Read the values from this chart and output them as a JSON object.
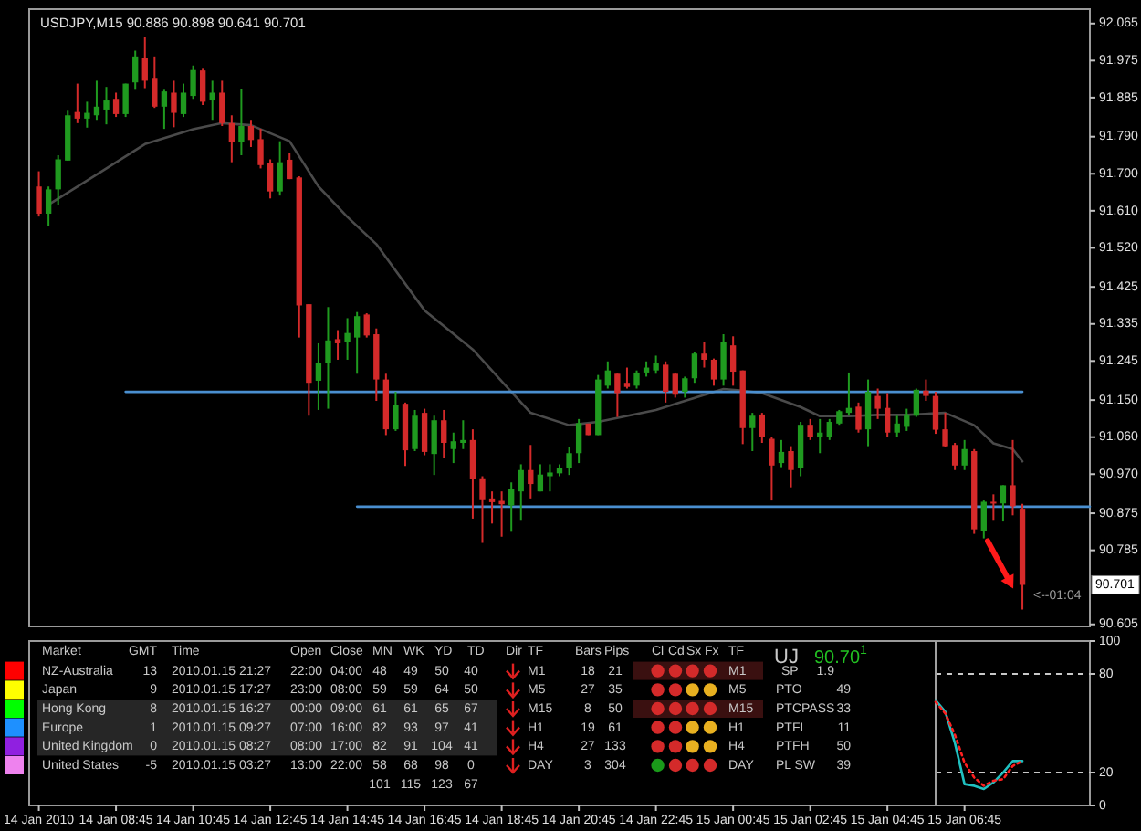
{
  "chart_data": [
    {
      "type": "candlestick",
      "title": "USDJPY,M15 90.886 90.898 90.641 90.701",
      "tick_labels": "y",
      "xlim": [
        "2010-01-14T06:30",
        "2010-01-15T10:00"
      ],
      "ylim": [
        90.6,
        92.1
      ],
      "yticks": [
        92.065,
        91.975,
        91.885,
        {
          "value": 91.79,
          "label": "91.790"
        },
        {
          "value": 91.7,
          "label": "91.700"
        },
        {
          "value": 91.61,
          "label": "91.610"
        },
        {
          "value": 91.52,
          "label": "91.520"
        },
        91.425,
        91.335,
        91.245,
        {
          "value": 91.15,
          "label": "91.150"
        },
        {
          "value": 91.06,
          "label": "91.060"
        },
        {
          "value": 90.97,
          "label": "90.970"
        },
        90.875,
        90.785,
        90.605
      ],
      "x": [
        "2010-01-14T06:45",
        "2010-01-14T07:00",
        "2010-01-14T07:15",
        "2010-01-14T07:30",
        "2010-01-14T07:45",
        "2010-01-14T08:00",
        "2010-01-14T08:15",
        "2010-01-14T08:30",
        "2010-01-14T08:45",
        "2010-01-14T09:00",
        "2010-01-14T09:15",
        "2010-01-14T09:30",
        "2010-01-14T09:45",
        "2010-01-14T10:00",
        "2010-01-14T10:15",
        "2010-01-14T10:30",
        "2010-01-14T10:45",
        "2010-01-14T11:00",
        "2010-01-14T11:15",
        "2010-01-14T11:30",
        "2010-01-14T11:45",
        "2010-01-14T12:00",
        "2010-01-14T12:15",
        "2010-01-14T12:30",
        "2010-01-14T12:45",
        "2010-01-14T13:00",
        "2010-01-14T13:15",
        "2010-01-14T13:30",
        "2010-01-14T13:45",
        "2010-01-14T14:00",
        "2010-01-14T14:15",
        "2010-01-14T14:30",
        "2010-01-14T14:45",
        "2010-01-14T15:00",
        "2010-01-14T15:15",
        "2010-01-14T15:30",
        "2010-01-14T15:45",
        "2010-01-14T16:00",
        "2010-01-14T16:15",
        "2010-01-14T16:30",
        "2010-01-14T16:45",
        "2010-01-14T17:00",
        "2010-01-14T17:15",
        "2010-01-14T17:30",
        "2010-01-14T17:45",
        "2010-01-14T18:00",
        "2010-01-14T18:15",
        "2010-01-14T18:30",
        "2010-01-14T18:45",
        "2010-01-14T19:00",
        "2010-01-14T19:15",
        "2010-01-14T19:30",
        "2010-01-14T19:45",
        "2010-01-14T20:00",
        "2010-01-14T20:15",
        "2010-01-14T20:30",
        "2010-01-14T20:45",
        "2010-01-14T21:00",
        "2010-01-14T21:15",
        "2010-01-14T21:30",
        "2010-01-14T21:45",
        "2010-01-14T22:00",
        "2010-01-14T22:15",
        "2010-01-14T22:30",
        "2010-01-14T22:45",
        "2010-01-14T23:00",
        "2010-01-14T23:15",
        "2010-01-14T23:30",
        "2010-01-14T23:45",
        "2010-01-15T00:00",
        "2010-01-15T00:15",
        "2010-01-15T00:30",
        "2010-01-15T00:45",
        "2010-01-15T01:00",
        "2010-01-15T01:15",
        "2010-01-15T01:30",
        "2010-01-15T01:45",
        "2010-01-15T02:00",
        "2010-01-15T02:15",
        "2010-01-15T02:30",
        "2010-01-15T02:45",
        "2010-01-15T03:00",
        "2010-01-15T03:15",
        "2010-01-15T03:30",
        "2010-01-15T03:45",
        "2010-01-15T04:00",
        "2010-01-15T04:15",
        "2010-01-15T04:30",
        "2010-01-15T04:45",
        "2010-01-15T05:00",
        "2010-01-15T05:15",
        "2010-01-15T05:30",
        "2010-01-15T05:45",
        "2010-01-15T06:00",
        "2010-01-15T06:15",
        "2010-01-15T06:30",
        "2010-01-15T06:45",
        "2010-01-15T07:00",
        "2010-01-15T07:15",
        "2010-01-15T07:30",
        "2010-01-15T07:45",
        "2010-01-15T08:00",
        "2010-01-15T08:15"
      ],
      "ohlc": [
        [
          91.669,
          91.706,
          91.596,
          91.603
        ],
        [
          91.603,
          91.669,
          91.574,
          91.662
        ],
        [
          91.662,
          91.745,
          91.625,
          91.735
        ],
        [
          91.732,
          91.853,
          91.732,
          91.842
        ],
        [
          91.85,
          91.919,
          91.823,
          91.834
        ],
        [
          91.834,
          91.875,
          91.812,
          91.848
        ],
        [
          91.842,
          91.926,
          91.831,
          91.863
        ],
        [
          91.856,
          91.911,
          91.82,
          91.878
        ],
        [
          91.882,
          91.897,
          91.838,
          91.845
        ],
        [
          91.845,
          91.919,
          91.838,
          91.919
        ],
        [
          91.922,
          91.999,
          91.904,
          91.985
        ],
        [
          91.982,
          92.033,
          91.908,
          91.926
        ],
        [
          91.933,
          91.985,
          91.86,
          91.863
        ],
        [
          91.863,
          91.904,
          91.809,
          91.9
        ],
        [
          91.897,
          91.926,
          91.813,
          91.848
        ],
        [
          91.845,
          91.919,
          91.838,
          91.897
        ],
        [
          91.889,
          91.963,
          91.882,
          91.952
        ],
        [
          91.951,
          91.955,
          91.867,
          91.875
        ],
        [
          91.878,
          91.926,
          91.831,
          91.897
        ],
        [
          91.897,
          91.926,
          91.816,
          91.823
        ],
        [
          91.823,
          91.842,
          91.728,
          91.776
        ],
        [
          91.776,
          91.907,
          91.745,
          91.816
        ],
        [
          91.816,
          91.831,
          91.765,
          91.782
        ],
        [
          91.784,
          91.809,
          91.713,
          91.721
        ],
        [
          91.725,
          91.735,
          91.64,
          91.657
        ],
        [
          91.657,
          91.779,
          91.647,
          91.728
        ],
        [
          91.734,
          91.75,
          91.687,
          91.687
        ],
        [
          91.691,
          91.694,
          91.302,
          91.38
        ],
        [
          91.383,
          91.383,
          91.112,
          91.192
        ],
        [
          91.197,
          91.288,
          91.126,
          91.241
        ],
        [
          91.241,
          91.376,
          91.129,
          91.295
        ],
        [
          91.298,
          91.32,
          91.248,
          91.288
        ],
        [
          91.292,
          91.349,
          91.248,
          91.313
        ],
        [
          91.302,
          91.364,
          91.214,
          91.354
        ],
        [
          91.358,
          91.361,
          91.302,
          91.307
        ],
        [
          91.31,
          91.324,
          91.148,
          91.2
        ],
        [
          91.2,
          91.214,
          91.065,
          91.079
        ],
        [
          91.079,
          91.17,
          91.075,
          91.138
        ],
        [
          91.141,
          91.144,
          90.99,
          91.028
        ],
        [
          91.031,
          91.126,
          91.026,
          91.112
        ],
        [
          91.119,
          91.129,
          91.016,
          91.024
        ],
        [
          91.019,
          91.112,
          90.968,
          91.101
        ],
        [
          91.101,
          91.126,
          91.009,
          91.046
        ],
        [
          91.031,
          91.071,
          90.997,
          91.05
        ],
        [
          91.046,
          91.101,
          91.031,
          91.053
        ],
        [
          91.053,
          91.079,
          90.862,
          90.958
        ],
        [
          90.96,
          90.965,
          90.803,
          90.909
        ],
        [
          90.911,
          90.928,
          90.85,
          90.902
        ],
        [
          90.905,
          90.928,
          90.818,
          90.897
        ],
        [
          90.894,
          90.95,
          90.83,
          90.933
        ],
        [
          90.928,
          90.994,
          90.859,
          90.98
        ],
        [
          90.98,
          91.041,
          90.911,
          90.946
        ],
        [
          90.928,
          90.994,
          90.928,
          90.969
        ],
        [
          90.965,
          90.994,
          90.928,
          90.974
        ],
        [
          90.972,
          90.994,
          90.965,
          90.985
        ],
        [
          90.984,
          91.035,
          90.968,
          91.021
        ],
        [
          91.021,
          91.104,
          90.997,
          91.094
        ],
        [
          91.093,
          91.093,
          91.065,
          91.065
        ],
        [
          91.065,
          91.211,
          91.065,
          91.2
        ],
        [
          91.185,
          91.244,
          91.178,
          91.222
        ],
        [
          91.214,
          91.214,
          91.109,
          91.167
        ],
        [
          91.192,
          91.229,
          91.178,
          91.182
        ],
        [
          91.185,
          91.222,
          91.178,
          91.217
        ],
        [
          91.217,
          91.244,
          91.207,
          91.229
        ],
        [
          91.222,
          91.258,
          91.214,
          91.239
        ],
        [
          91.236,
          91.244,
          91.144,
          91.17
        ],
        [
          91.214,
          91.217,
          91.156,
          91.163
        ],
        [
          91.17,
          91.207,
          91.156,
          91.203
        ],
        [
          91.203,
          91.266,
          91.192,
          91.263
        ],
        [
          91.263,
          91.292,
          91.229,
          91.248
        ],
        [
          91.248,
          91.251,
          91.185,
          91.2
        ],
        [
          91.2,
          91.31,
          91.185,
          91.292
        ],
        [
          91.283,
          91.305,
          91.185,
          91.219
        ],
        [
          91.222,
          91.222,
          91.043,
          91.082
        ],
        [
          91.082,
          91.119,
          91.026,
          91.112
        ],
        [
          91.115,
          91.119,
          91.046,
          91.06
        ],
        [
          91.056,
          91.06,
          90.906,
          90.991
        ],
        [
          90.997,
          91.053,
          90.987,
          91.024
        ],
        [
          91.026,
          91.038,
          90.938,
          90.98
        ],
        [
          90.984,
          91.097,
          90.965,
          91.09
        ],
        [
          91.09,
          91.104,
          91.053,
          91.06
        ],
        [
          91.06,
          91.104,
          91.021,
          91.071
        ],
        [
          91.06,
          91.104,
          91.053,
          91.097
        ],
        [
          91.093,
          91.126,
          91.09,
          91.123
        ],
        [
          91.119,
          91.217,
          91.112,
          91.131
        ],
        [
          91.134,
          91.144,
          91.071,
          91.078
        ],
        [
          91.079,
          91.2,
          91.038,
          91.17
        ],
        [
          91.16,
          91.178,
          91.104,
          91.129
        ],
        [
          91.131,
          91.167,
          91.06,
          91.071
        ],
        [
          91.071,
          91.112,
          91.06,
          91.093
        ],
        [
          91.085,
          91.129,
          91.075,
          91.115
        ],
        [
          91.112,
          91.178,
          91.109,
          91.175
        ],
        [
          91.173,
          91.2,
          91.148,
          91.16
        ],
        [
          91.16,
          91.17,
          91.068,
          91.078
        ],
        [
          91.079,
          91.119,
          91.035,
          91.038
        ],
        [
          91.041,
          91.046,
          90.98,
          90.991
        ],
        [
          90.991,
          91.053,
          90.98,
          91.031
        ],
        [
          91.026,
          91.031,
          90.825,
          90.836
        ],
        [
          90.833,
          90.906,
          90.814,
          90.903
        ],
        [
          90.903,
          90.921,
          90.859,
          90.902
        ],
        [
          90.899,
          90.943,
          90.855,
          90.943
        ],
        [
          90.943,
          91.053,
          90.87,
          90.892
        ],
        [
          90.886,
          90.898,
          90.641,
          90.701
        ]
      ],
      "series": [
        {
          "type": "line",
          "color": "#4a4a4a",
          "x": [
            "2010-01-14T07:00",
            "2010-01-14T08:15",
            "2010-01-14T09:30",
            "2010-01-14T10:45",
            "2010-01-14T11:30",
            "2010-01-14T12:15",
            "2010-01-14T13:15",
            "2010-01-14T14:00",
            "2010-01-14T14:45",
            "2010-01-14T15:30",
            "2010-01-14T16:45",
            "2010-01-14T18:00",
            "2010-01-14T19:00",
            "2010-01-14T19:30",
            "2010-01-14T20:30",
            "2010-01-14T21:15",
            "2010-01-14T22:45",
            "2010-01-14T23:30",
            "2010-01-15T00:30",
            "2010-01-15T01:00",
            "2010-01-15T01:30",
            "2010-01-15T02:30",
            "2010-01-15T03:00",
            "2010-01-15T03:45",
            "2010-01-15T04:30",
            "2010-01-15T05:15",
            "2010-01-15T06:15",
            "2010-01-15T07:00",
            "2010-01-15T07:30",
            "2010-01-15T08:00",
            "2010-01-15T08:15"
          ],
          "values": [
            91.625,
            91.698,
            91.772,
            91.808,
            91.823,
            91.818,
            91.779,
            91.669,
            91.595,
            91.529,
            91.368,
            91.273,
            91.17,
            91.119,
            91.089,
            91.097,
            91.126,
            91.148,
            91.177,
            91.173,
            91.167,
            91.133,
            91.111,
            91.111,
            91.114,
            91.114,
            91.119,
            91.089,
            91.045,
            91.031,
            91.001
          ]
        },
        {
          "type": "line",
          "color": "#4a8fd0",
          "x": [
            "2010-01-14T09:00",
            "2010-01-15T08:15"
          ],
          "values": [
            91.17,
            91.17
          ]
        },
        {
          "type": "line",
          "color": "#4a8fd0",
          "x": [
            "2010-01-14T15:00",
            "2010-01-15T10:00"
          ],
          "values": [
            90.891,
            90.891
          ]
        }
      ],
      "annotations": [
        {
          "text": "<--01:04",
          "x": "2010-01-15T08:15",
          "y": 90.676
        },
        {
          "text": "90.701",
          "y": 90.701
        }
      ]
    },
    {
      "type": "other",
      "colors": [
        "#ff0000",
        "#ffff00",
        "#00ff00",
        "#1e90ff",
        "#9020e0",
        "#ee82ee",
        "#d42a2a",
        "#d42a2a",
        "#d42a2a",
        "#d42a2a",
        "#d42a2a",
        "#d42a2a",
        "#e8b020",
        "#e8b020",
        "#d42a2a",
        "#d42a2a",
        "#d42a2a",
        "#d42a2a",
        "#d42a2a",
        "#d42a2a",
        "#e8b020",
        "#e8b020",
        "#d42a2a",
        "#d42a2a",
        "#e8b020",
        "#e8b020",
        "#1a9a1a",
        "#d42a2a",
        "#d42a2a",
        "#d42a2a"
      ],
      "annotations": [
        "Market",
        "GMT",
        "Time",
        "Open",
        "Close",
        "MN",
        "WK",
        "YD",
        "TD",
        "Dir",
        "TF",
        "Bars",
        "Pips",
        "Cl",
        "Cd",
        "Sx",
        "Fx",
        "TF",
        "NZ-Australia",
        "13",
        "2010.01.15 21:27",
        "22:00",
        "04:00",
        "48",
        "49",
        "50",
        "40",
        "M1",
        "18",
        "21",
        "M1",
        "Japan",
        "9",
        "2010.01.15 17:27",
        "23:00",
        "08:00",
        "59",
        "59",
        "64",
        "50",
        "M5",
        "27",
        "35",
        "M5",
        "Hong Kong",
        "8",
        "2010.01.15 16:27",
        "00:00",
        "09:00",
        "61",
        "61",
        "65",
        "67",
        "M15",
        "8",
        "50",
        "M15",
        "Europe",
        "1",
        "2010.01.15 09:27",
        "07:00",
        "16:00",
        "82",
        "93",
        "97",
        "41",
        "H1",
        "19",
        "61",
        "H1",
        "United Kingdom",
        "0",
        "2010.01.15 08:27",
        "08:00",
        "17:00",
        "82",
        "91",
        "104",
        "41",
        "H4",
        "27",
        "133",
        "H4",
        "United States",
        "-5",
        "2010.01.15 03:27",
        "13:00",
        "22:00",
        "58",
        "68",
        "98",
        "0",
        "DAY",
        "3",
        "304",
        "DAY",
        "101",
        "115",
        "123",
        "67",
        "UJ",
        "90.70$^{1}$",
        "SP",
        "1.9",
        "PTO",
        "49",
        "PTCPASS",
        "33",
        "PTFL",
        "11",
        "PTFH",
        "50",
        "PL SW",
        "39"
      ]
    },
    {
      "type": "line",
      "xlim": [
        "2010-01-14T06:30",
        "2010-01-15T10:00"
      ],
      "ylim": [
        0,
        100
      ],
      "yticks": [
        0,
        20,
        80,
        100
      ],
      "xticks": [
        {
          "value": "2010-01-14T06:45",
          "label": "14 Jan 2010"
        },
        {
          "value": "2010-01-14T08:45",
          "label": "14 Jan 08:45"
        },
        {
          "value": "2010-01-14T10:45",
          "label": "14 Jan 10:45"
        },
        {
          "value": "2010-01-14T12:45",
          "label": "14 Jan 12:45"
        },
        {
          "value": "2010-01-14T14:45",
          "label": "14 Jan 14:45"
        },
        {
          "value": "2010-01-14T16:45",
          "label": "14 Jan 16:45"
        },
        {
          "value": "2010-01-14T18:45",
          "label": "14 Jan 18:45"
        },
        {
          "value": "2010-01-14T20:45",
          "label": "14 Jan 20:45"
        },
        {
          "value": "2010-01-14T22:45",
          "label": "14 Jan 22:45"
        },
        {
          "value": "2010-01-15T00:45",
          "label": "15 Jan 00:45"
        },
        {
          "value": "2010-01-15T02:45",
          "label": "15 Jan 02:45"
        },
        {
          "value": "2010-01-15T04:45",
          "label": "15 Jan 04:45"
        },
        {
          "value": "2010-01-15T06:45",
          "label": "15 Jan 06:45"
        }
      ],
      "x": [
        "2010-01-15T06:00",
        "2010-01-15T06:15",
        "2010-01-15T06:30",
        "2010-01-15T06:45",
        "2010-01-15T07:00",
        "2010-01-15T07:15",
        "2010-01-15T07:30",
        "2010-01-15T07:45",
        "2010-01-15T08:00",
        "2010-01-15T08:15"
      ],
      "series": [
        {
          "color": "#20c0c0",
          "line_style": "solid",
          "values": [
            64,
            57,
            38,
            13,
            12,
            10,
            14,
            20,
            27,
            27
          ]
        },
        {
          "color": "#ff2020",
          "line_style": "dotted",
          "values": [
            63,
            56,
            43,
            26,
            17,
            12,
            15,
            16,
            24,
            27
          ]
        }
      ],
      "ref_lines": [
        {
          "axis": "y",
          "value": 20,
          "color": "#c8c8c8",
          "line_style": "dashed"
        },
        {
          "axis": "y",
          "value": 80,
          "color": "#c8c8c8",
          "line_style": "dashed"
        },
        {
          "axis": "x",
          "value": "2010-01-15T06:00",
          "color": "#a0a0a0",
          "line_style": "solid"
        }
      ]
    }
  ]
}
